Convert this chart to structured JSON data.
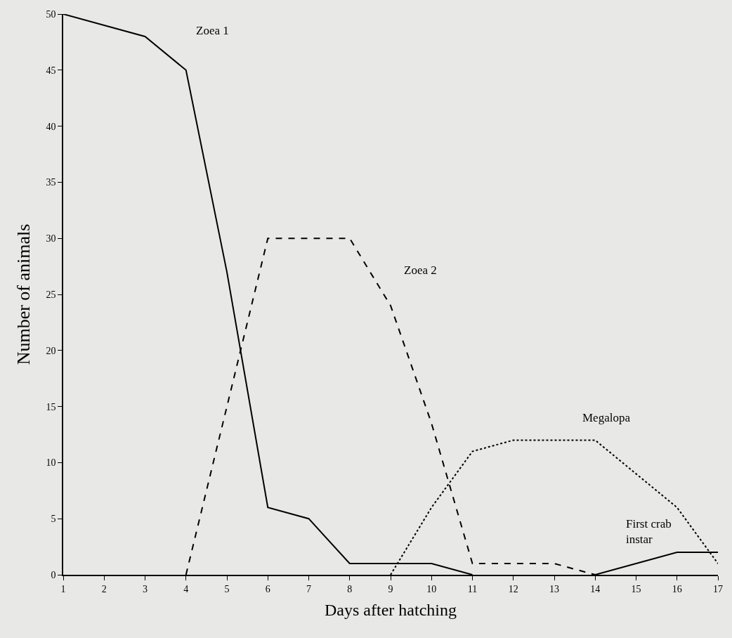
{
  "chart_data": {
    "type": "line",
    "xlabel": "Days after hatching",
    "ylabel": "Number of animals",
    "xlim": [
      1,
      17
    ],
    "xticks": [
      1,
      2,
      3,
      4,
      5,
      6,
      7,
      8,
      9,
      10,
      11,
      12,
      13,
      14,
      15,
      16,
      17
    ],
    "ylim": [
      0,
      50
    ],
    "yticks": [
      0,
      5,
      10,
      15,
      20,
      25,
      30,
      35,
      40,
      45,
      50
    ],
    "grid": false,
    "legend": false,
    "marker": "none",
    "series": [
      {
        "name": "Zoea 1",
        "color": "#000000",
        "line_style": "solid",
        "x": [
          1,
          2,
          3,
          4,
          5,
          6,
          7,
          8,
          9,
          10,
          11
        ],
        "values": [
          50,
          49,
          48,
          45,
          27,
          6,
          5,
          1,
          1,
          1,
          0
        ]
      },
      {
        "name": "Zoea 2",
        "color": "#000000",
        "line_style": "dashed",
        "x": [
          4,
          5,
          6,
          7,
          8,
          9,
          10,
          11,
          12,
          13,
          14
        ],
        "values": [
          0,
          15,
          30,
          30,
          30,
          24,
          13.5,
          1,
          1,
          1,
          0
        ]
      },
      {
        "name": "Megalopa",
        "color": "#000000",
        "line_style": "dotted",
        "x": [
          9,
          10,
          11,
          12,
          13,
          14,
          15,
          16,
          17
        ],
        "values": [
          0,
          6,
          11,
          12,
          12,
          12,
          9,
          6,
          1
        ]
      },
      {
        "name": "First crab\ninstar",
        "color": "#000000",
        "line_style": "solid",
        "x": [
          14,
          15,
          16,
          17
        ],
        "values": [
          0,
          1,
          2,
          2
        ]
      }
    ]
  }
}
